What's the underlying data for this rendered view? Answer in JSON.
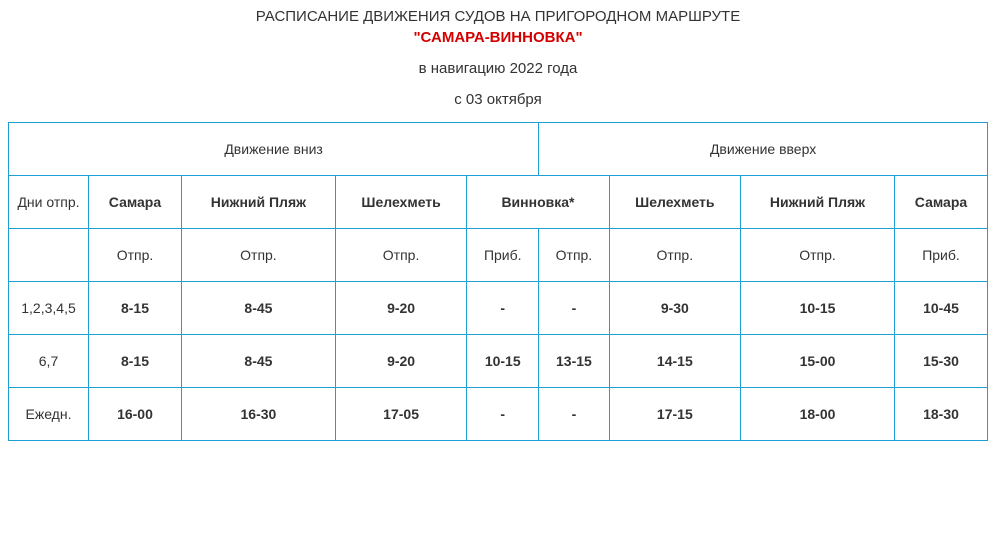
{
  "colors": {
    "route_color": "#d40000",
    "border_color": "#1d9fd6",
    "text_color": "#333333",
    "background": "#ffffff"
  },
  "header": {
    "title_main": "РАСПИСАНИЕ ДВИЖЕНИЯ СУДОВ НА ПРИГОРОДНОМ МАРШРУТЕ",
    "title_route": "\"САМАРА-ВИННОВКА\"",
    "subtitle_nav": "в навигацию 2022 года",
    "subtitle_date": "с 03 октября"
  },
  "table": {
    "section_down": "Движение вниз",
    "section_up": "Движение вверх",
    "columns": {
      "days": "Дни отпр.",
      "samara": "Самара",
      "nizhniy_plyazh": "Нижний Пляж",
      "shelekhmet": "Шелехметь",
      "vinnovka": "Винновка*"
    },
    "subheaders": {
      "depart": "Отпр.",
      "arrive": "Приб."
    },
    "rows": [
      {
        "days": "1,2,3,4,5",
        "samara_dep": "8-15",
        "nizhniy_dep_down": "8-45",
        "shelekhmet_dep_down": "9-20",
        "vinnovka_arr": "-",
        "vinnovka_dep": "-",
        "shelekhmet_dep_up": "9-30",
        "nizhniy_dep_up": "10-15",
        "samara_arr": "10-45"
      },
      {
        "days": "6,7",
        "samara_dep": "8-15",
        "nizhniy_dep_down": "8-45",
        "shelekhmet_dep_down": "9-20",
        "vinnovka_arr": "10-15",
        "vinnovka_dep": "13-15",
        "shelekhmet_dep_up": "14-15",
        "nizhniy_dep_up": "15-00",
        "samara_arr": "15-30"
      },
      {
        "days": "Ежедн.",
        "samara_dep": "16-00",
        "nizhniy_dep_down": "16-30",
        "shelekhmet_dep_down": "17-05",
        "vinnovka_arr": "-",
        "vinnovka_dep": "-",
        "shelekhmet_dep_up": "17-15",
        "nizhniy_dep_up": "18-00",
        "samara_arr": "18-30"
      }
    ]
  }
}
